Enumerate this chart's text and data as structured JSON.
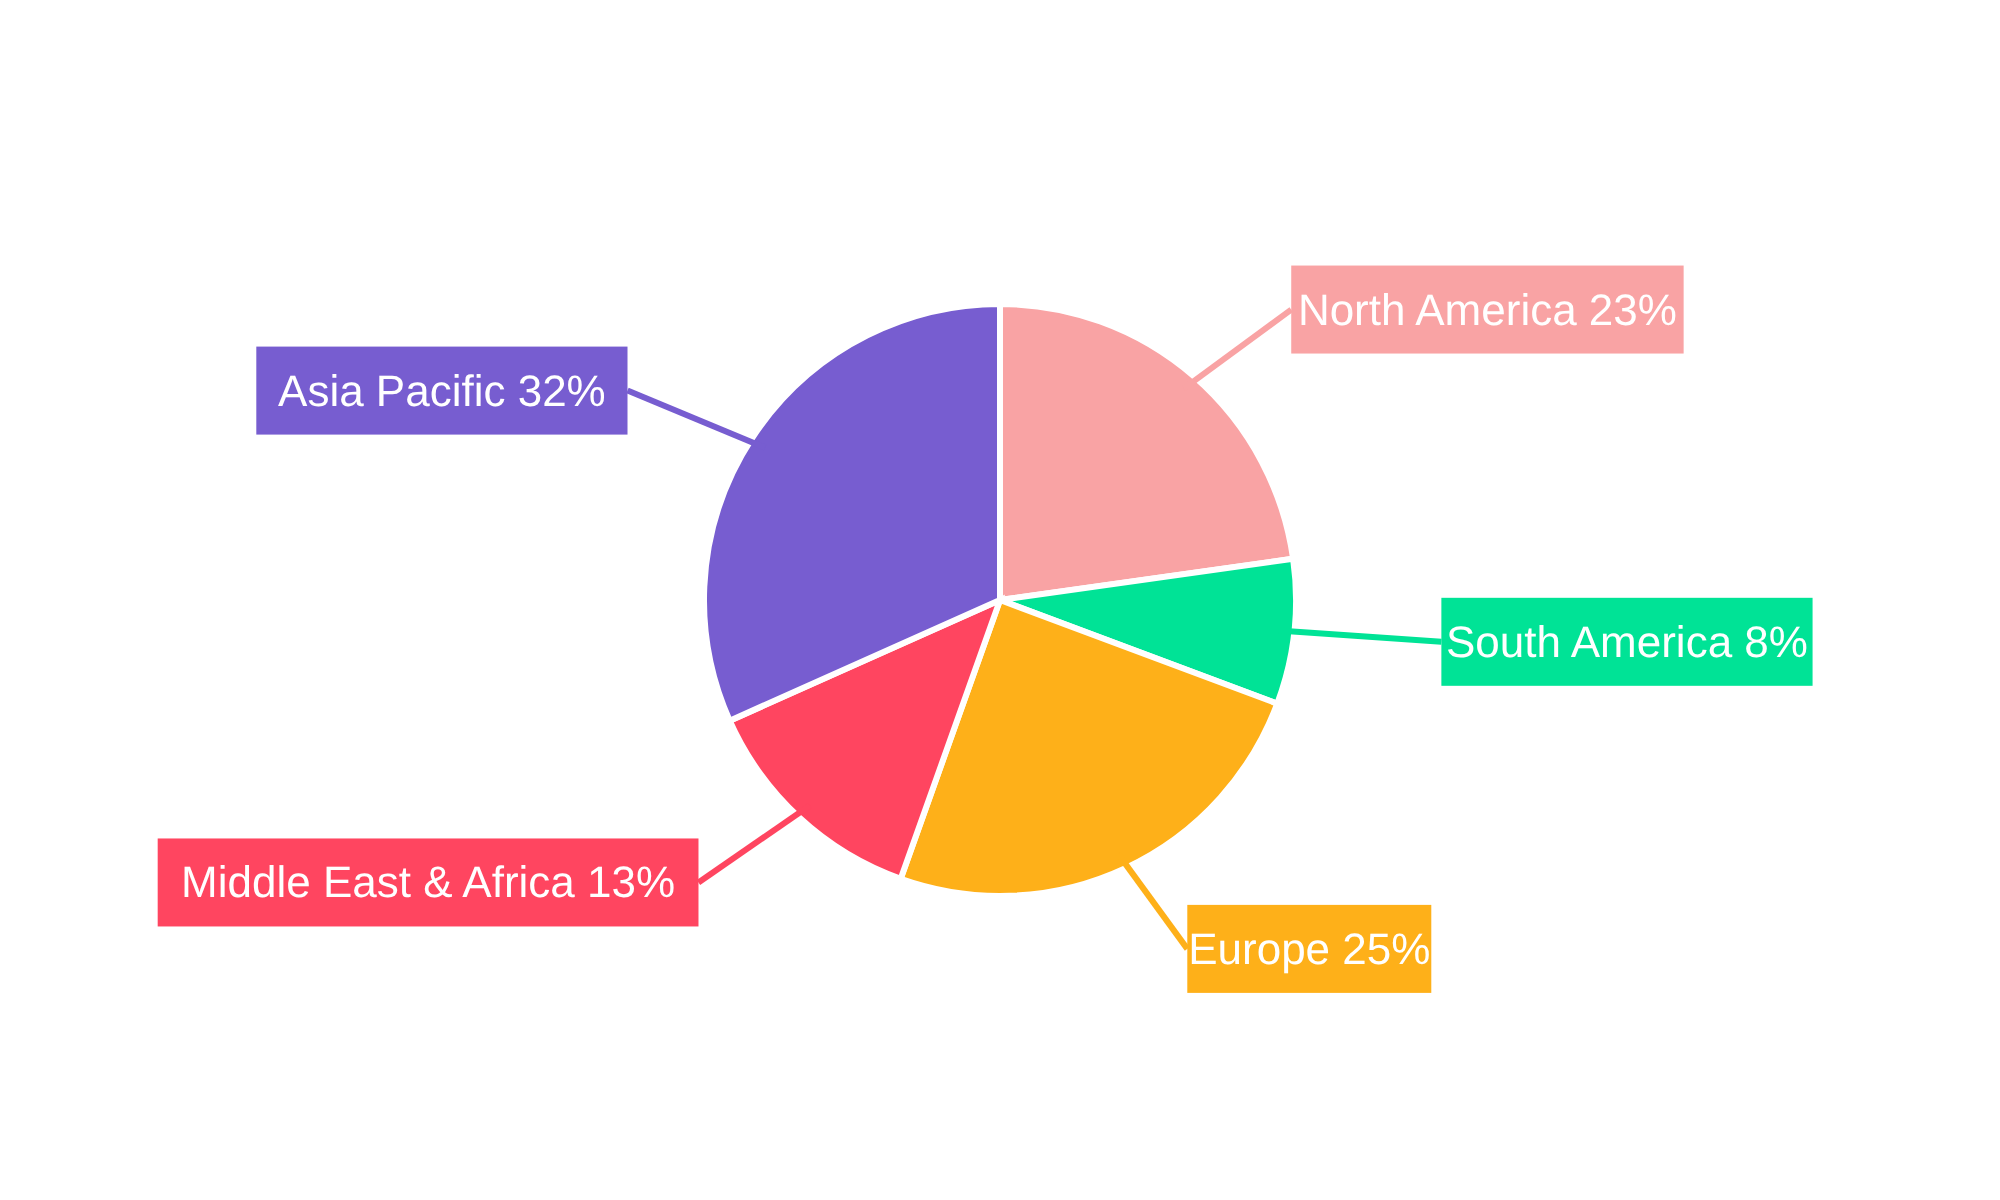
{
  "chart_data": {
    "type": "pie",
    "categories": [
      "North America",
      "South America",
      "Europe",
      "Middle East & Africa",
      "Asia Pacific"
    ],
    "values": [
      23,
      8,
      25,
      13,
      32
    ],
    "value_labels": [
      "23%",
      "8%",
      "25%",
      "13%",
      "32%"
    ],
    "colors": [
      "#f9a3a4",
      "#00e396",
      "#feb019",
      "#ff4560",
      "#775dd0"
    ]
  }
}
